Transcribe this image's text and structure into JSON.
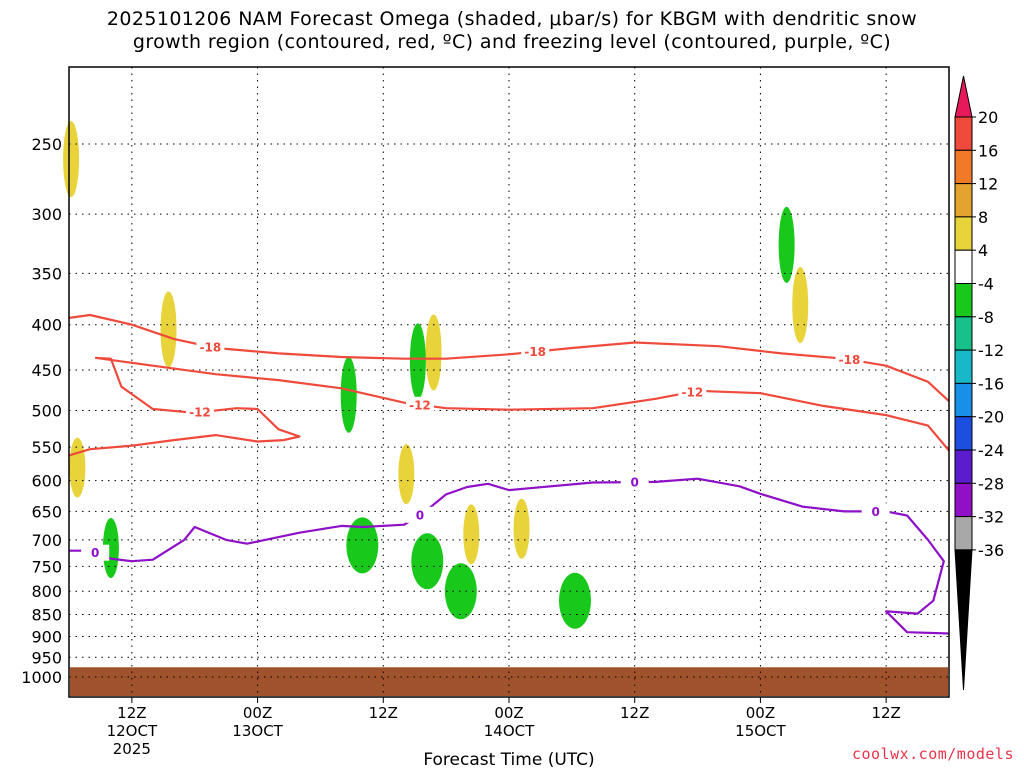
{
  "title": {
    "line1": "2025101206 NAM Forecast Omega (shaded, μbar/s) for KBGM with dendritic snow",
    "line2": "growth region (contoured, red, ºC) and freezing level (contoured, purple, ºC)"
  },
  "credit": "coolwx.com/models",
  "chart_data": {
    "type": "contour",
    "title": "2025101206 NAM Forecast Omega (shaded, μbar/s) for KBGM with dendritic snow growth region (contoured, red, ºC) and freezing level (contoured, purple, ºC)",
    "xlabel": "Forecast Time (UTC)",
    "ylabel": "",
    "y_scale": "log-pressure",
    "y_inverted": true,
    "ylim": [
      1050,
      200
    ],
    "y_ticks": [
      250,
      300,
      350,
      400,
      450,
      500,
      550,
      600,
      650,
      700,
      750,
      800,
      850,
      900,
      950,
      1000
    ],
    "x_ticks": [
      {
        "hour": 6,
        "line1": "12Z",
        "line2": "12OCT",
        "line3": "2025"
      },
      {
        "hour": 18,
        "line1": "00Z",
        "line2": "13OCT",
        "line3": ""
      },
      {
        "hour": 30,
        "line1": "12Z",
        "line2": "",
        "line3": ""
      },
      {
        "hour": 42,
        "line1": "00Z",
        "line2": "14OCT",
        "line3": ""
      },
      {
        "hour": 54,
        "line1": "12Z",
        "line2": "",
        "line3": ""
      },
      {
        "hour": 66,
        "line1": "00Z",
        "line2": "15OCT",
        "line3": ""
      },
      {
        "hour": 78,
        "line1": "12Z",
        "line2": "",
        "line3": ""
      }
    ],
    "x_range_hours": [
      0,
      84
    ],
    "grid": "dotted",
    "colorbar": {
      "labels": [
        "20",
        "16",
        "12",
        "8",
        "4",
        "-4",
        "-8",
        "-12",
        "-16",
        "-20",
        "-24",
        "-28",
        "-32",
        "-36"
      ],
      "colors": [
        "#e8195a",
        "#ef4a3c",
        "#f07a28",
        "#e4a22e",
        "#e8d43a",
        "#ffffff",
        "#18c81a",
        "#18c08a",
        "#18b8c8",
        "#1890e8",
        "#1c4ee0",
        "#5a1ccc",
        "#9010c8",
        "#a8a8a8",
        "#000000"
      ]
    },
    "contours": [
      {
        "name": "-18",
        "color": "#ef4a3c",
        "label_x_hours": [
          13.5,
          44.5,
          74.5
        ],
        "points": [
          [
            0,
            393
          ],
          [
            2,
            390
          ],
          [
            6,
            400
          ],
          [
            10,
            415
          ],
          [
            14,
            425
          ],
          [
            20,
            431
          ],
          [
            26,
            435
          ],
          [
            32,
            437
          ],
          [
            36,
            437
          ],
          [
            42,
            432
          ],
          [
            48,
            425
          ],
          [
            54,
            419
          ],
          [
            62,
            423
          ],
          [
            68,
            431
          ],
          [
            74,
            437
          ],
          [
            78,
            445
          ],
          [
            82,
            464
          ],
          [
            84,
            488
          ]
        ]
      },
      {
        "name": "-12",
        "color": "#ef4a3c",
        "label_x_hours": [
          12.5,
          33.5,
          59.5
        ],
        "points": [
          [
            2.5,
            436
          ],
          [
            4,
            437
          ],
          [
            5,
            470
          ],
          [
            8,
            498
          ],
          [
            12,
            503
          ],
          [
            16,
            497
          ],
          [
            18,
            498
          ],
          [
            20,
            525
          ],
          [
            22,
            535
          ],
          [
            20.5,
            540
          ],
          [
            18,
            542
          ],
          [
            14,
            533
          ],
          [
            10,
            540
          ],
          [
            6,
            548
          ],
          [
            2,
            553
          ],
          [
            0,
            562
          ]
        ]
      },
      {
        "name": "-12",
        "color": "#ef4a3c",
        "label_x_hours": [
          33.5,
          59.5
        ],
        "points": [
          [
            2.5,
            436
          ],
          [
            8,
            445
          ],
          [
            14,
            455
          ],
          [
            20,
            462
          ],
          [
            26,
            472
          ],
          [
            32,
            490
          ],
          [
            36,
            497
          ],
          [
            42,
            499
          ],
          [
            50,
            497
          ],
          [
            56,
            485
          ],
          [
            60,
            475
          ],
          [
            66,
            478
          ],
          [
            72,
            494
          ],
          [
            78,
            506
          ],
          [
            82,
            520
          ],
          [
            84,
            555
          ]
        ]
      },
      {
        "name": "0",
        "color": "#8e10c8",
        "label_x_hours": [
          2.5,
          33.5,
          54,
          77
        ],
        "points": [
          [
            0,
            720
          ],
          [
            2,
            720
          ],
          [
            4,
            735
          ],
          [
            6,
            740
          ],
          [
            8,
            737
          ],
          [
            11,
            700
          ],
          [
            12,
            677
          ],
          [
            15,
            700
          ],
          [
            17,
            707
          ],
          [
            19,
            699
          ],
          [
            22,
            687
          ],
          [
            26,
            675
          ],
          [
            28,
            677
          ],
          [
            32,
            673
          ],
          [
            34,
            650
          ],
          [
            36,
            622
          ],
          [
            38,
            610
          ],
          [
            40,
            605
          ],
          [
            42,
            615
          ],
          [
            44,
            612
          ],
          [
            50,
            603
          ],
          [
            56,
            602
          ],
          [
            60,
            597
          ],
          [
            64,
            609
          ],
          [
            66,
            621
          ],
          [
            70,
            642
          ],
          [
            74,
            650
          ],
          [
            78,
            650
          ],
          [
            80,
            657
          ],
          [
            82,
            700
          ],
          [
            83.5,
            740
          ],
          [
            82.5,
            820
          ],
          [
            81,
            848
          ],
          [
            78,
            843
          ],
          [
            80,
            890
          ],
          [
            84,
            893
          ]
        ]
      }
    ],
    "omega_areas": [
      {
        "band": "4",
        "color": "#e8d43a",
        "center_hours": 0.2,
        "center_hpa": 260
      },
      {
        "band": "4",
        "color": "#e8d43a",
        "center_hours": 9.5,
        "center_hpa": 405
      },
      {
        "band": "4",
        "color": "#e8d43a",
        "center_hours": 0.8,
        "center_hpa": 580
      },
      {
        "band": "4",
        "color": "#e8d43a",
        "center_hours": 34.8,
        "center_hpa": 430
      },
      {
        "band": "4",
        "color": "#e8d43a",
        "center_hours": 32.2,
        "center_hpa": 590
      },
      {
        "band": "4",
        "color": "#e8d43a",
        "center_hours": 38.4,
        "center_hpa": 690
      },
      {
        "band": "4",
        "color": "#e8d43a",
        "center_hours": 43.2,
        "center_hpa": 680
      },
      {
        "band": "4",
        "color": "#e8d43a",
        "center_hours": 69.8,
        "center_hpa": 380
      },
      {
        "band": "-4",
        "color": "#18c81a",
        "center_hours": 68.5,
        "center_hpa": 325
      },
      {
        "band": "-4",
        "color": "#18c81a",
        "center_hours": 33.3,
        "center_hpa": 440
      },
      {
        "band": "-4",
        "color": "#18c81a",
        "center_hours": 26.7,
        "center_hpa": 480
      },
      {
        "band": "-4",
        "color": "#18c81a",
        "center_hours": 4,
        "center_hpa": 715
      },
      {
        "band": "-4",
        "color": "#18c81a",
        "center_hours": 28,
        "center_hpa": 710
      },
      {
        "band": "-4",
        "color": "#18c81a",
        "center_hours": 34.2,
        "center_hpa": 740
      },
      {
        "band": "-4",
        "color": "#18c81a",
        "center_hours": 37.4,
        "center_hpa": 800
      },
      {
        "band": "-4",
        "color": "#18c81a",
        "center_hours": 48.3,
        "center_hpa": 820
      }
    ],
    "surface_hpa": 975
  }
}
